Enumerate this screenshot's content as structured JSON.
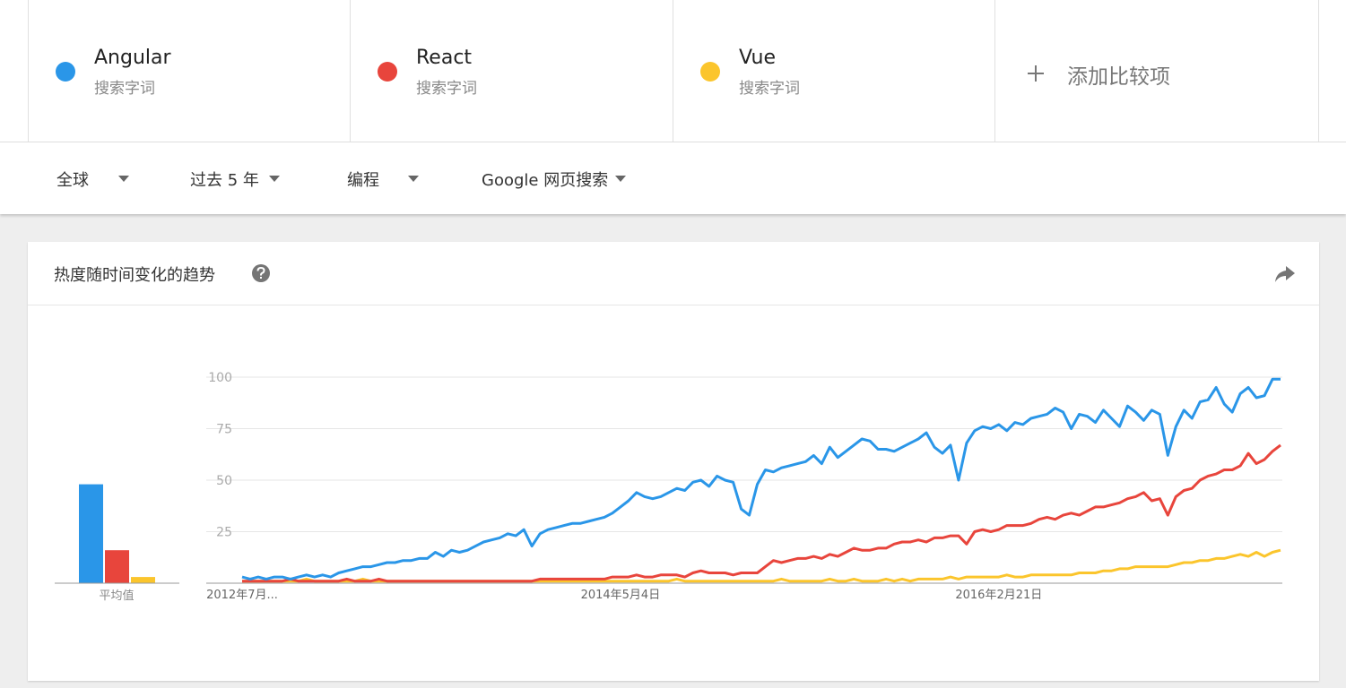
{
  "terms_kind": [
    "搜索字词",
    "搜索字词",
    "搜索字词"
  ],
  "add_compare": "添加比较项",
  "filters": [
    "全球",
    "过去 5 年",
    "编程",
    "Google 网页搜索"
  ],
  "card_title": "热度随时间变化的趋势",
  "chart_data": {
    "type": "line",
    "categories": [
      "2012年7月...",
      null,
      null,
      null,
      null,
      null,
      null,
      null,
      null,
      null,
      null,
      null,
      null,
      null,
      null,
      null,
      null,
      null,
      null,
      null,
      null,
      null,
      null,
      null,
      null,
      null,
      null,
      null,
      null,
      null,
      null,
      null,
      null,
      null,
      null,
      null,
      null,
      null,
      null,
      null,
      null,
      null,
      null,
      null,
      null,
      null,
      null,
      "2014年5月4日",
      null,
      null,
      null,
      null,
      null,
      null,
      null,
      null,
      null,
      null,
      null,
      null,
      null,
      null,
      null,
      null,
      null,
      null,
      null,
      null,
      null,
      null,
      null,
      null,
      null,
      null,
      null,
      null,
      null,
      null,
      null,
      null,
      null,
      null,
      null,
      null,
      null,
      null,
      null,
      null,
      null,
      null,
      null,
      null,
      null,
      null,
      "2016年2月21日",
      null,
      null,
      null,
      null,
      null,
      null,
      null,
      null,
      null,
      null,
      null,
      null,
      null,
      null,
      null,
      null,
      null,
      null,
      null,
      null,
      null,
      null,
      null,
      null,
      null,
      null,
      null,
      null,
      null,
      null,
      null,
      null,
      null,
      null,
      null
    ],
    "series": [
      {
        "name": "Angular",
        "color": "#2a96e8",
        "values": [
          3,
          2,
          3,
          2,
          3,
          3,
          2,
          3,
          4,
          3,
          4,
          3,
          5,
          6,
          7,
          8,
          8,
          9,
          10,
          10,
          11,
          11,
          12,
          12,
          15,
          13,
          16,
          15,
          16,
          18,
          20,
          21,
          22,
          24,
          23,
          26,
          18,
          24,
          26,
          27,
          28,
          29,
          29,
          30,
          31,
          32,
          34,
          37,
          40,
          44,
          42,
          41,
          42,
          44,
          46,
          45,
          49,
          50,
          47,
          52,
          50,
          49,
          36,
          33,
          48,
          55,
          54,
          56,
          57,
          58,
          59,
          62,
          58,
          66,
          61,
          64,
          67,
          70,
          69,
          65,
          65,
          64,
          66,
          68,
          70,
          73,
          66,
          63,
          67,
          50,
          68,
          74,
          76,
          75,
          77,
          74,
          78,
          77,
          80,
          81,
          82,
          85,
          83,
          75,
          82,
          81,
          78,
          84,
          80,
          76,
          86,
          83,
          79,
          84,
          82,
          62,
          76,
          84,
          80,
          88,
          89,
          95,
          87,
          83,
          92,
          95,
          90,
          91,
          99,
          99
        ]
      },
      {
        "name": "React",
        "color": "#e8453c",
        "values": [
          1,
          1,
          1,
          1,
          1,
          1,
          2,
          1,
          1,
          1,
          1,
          1,
          1,
          2,
          1,
          1,
          1,
          2,
          1,
          1,
          1,
          1,
          1,
          1,
          1,
          1,
          1,
          1,
          1,
          1,
          1,
          1,
          1,
          1,
          1,
          1,
          1,
          2,
          2,
          2,
          2,
          2,
          2,
          2,
          2,
          2,
          3,
          3,
          3,
          4,
          3,
          3,
          4,
          4,
          4,
          3,
          5,
          6,
          5,
          5,
          5,
          4,
          5,
          5,
          5,
          8,
          11,
          10,
          11,
          12,
          12,
          13,
          12,
          14,
          13,
          15,
          17,
          16,
          16,
          17,
          17,
          19,
          20,
          20,
          21,
          20,
          22,
          22,
          23,
          23,
          19,
          25,
          26,
          25,
          26,
          28,
          28,
          28,
          29,
          31,
          32,
          31,
          33,
          34,
          33,
          35,
          37,
          37,
          38,
          39,
          41,
          42,
          44,
          40,
          41,
          33,
          42,
          45,
          46,
          50,
          52,
          53,
          55,
          55,
          57,
          63,
          58,
          60,
          64,
          67
        ]
      },
      {
        "name": "Vue",
        "color": "#fbc52c",
        "values": [
          1,
          1,
          1,
          1,
          1,
          1,
          1,
          1,
          2,
          1,
          1,
          1,
          1,
          1,
          1,
          2,
          1,
          1,
          1,
          1,
          1,
          1,
          1,
          1,
          1,
          1,
          1,
          1,
          1,
          1,
          1,
          1,
          1,
          1,
          1,
          1,
          1,
          1,
          1,
          1,
          1,
          1,
          1,
          1,
          1,
          1,
          1,
          1,
          1,
          1,
          1,
          1,
          1,
          1,
          2,
          1,
          1,
          1,
          1,
          1,
          1,
          1,
          1,
          1,
          1,
          1,
          1,
          2,
          1,
          1,
          1,
          1,
          1,
          2,
          1,
          1,
          2,
          1,
          1,
          1,
          2,
          1,
          2,
          1,
          2,
          2,
          2,
          2,
          3,
          2,
          3,
          3,
          3,
          3,
          3,
          4,
          3,
          3,
          4,
          4,
          4,
          4,
          4,
          4,
          5,
          5,
          5,
          6,
          6,
          7,
          7,
          8,
          8,
          8,
          8,
          8,
          9,
          10,
          10,
          11,
          11,
          12,
          12,
          13,
          14,
          13,
          15,
          13,
          15,
          16
        ]
      }
    ],
    "averages": {
      "label": "平均值",
      "values": [
        48,
        16,
        3
      ]
    },
    "ylim": [
      0,
      100
    ],
    "yticks": [
      25,
      50,
      75,
      100
    ],
    "grid": true
  }
}
